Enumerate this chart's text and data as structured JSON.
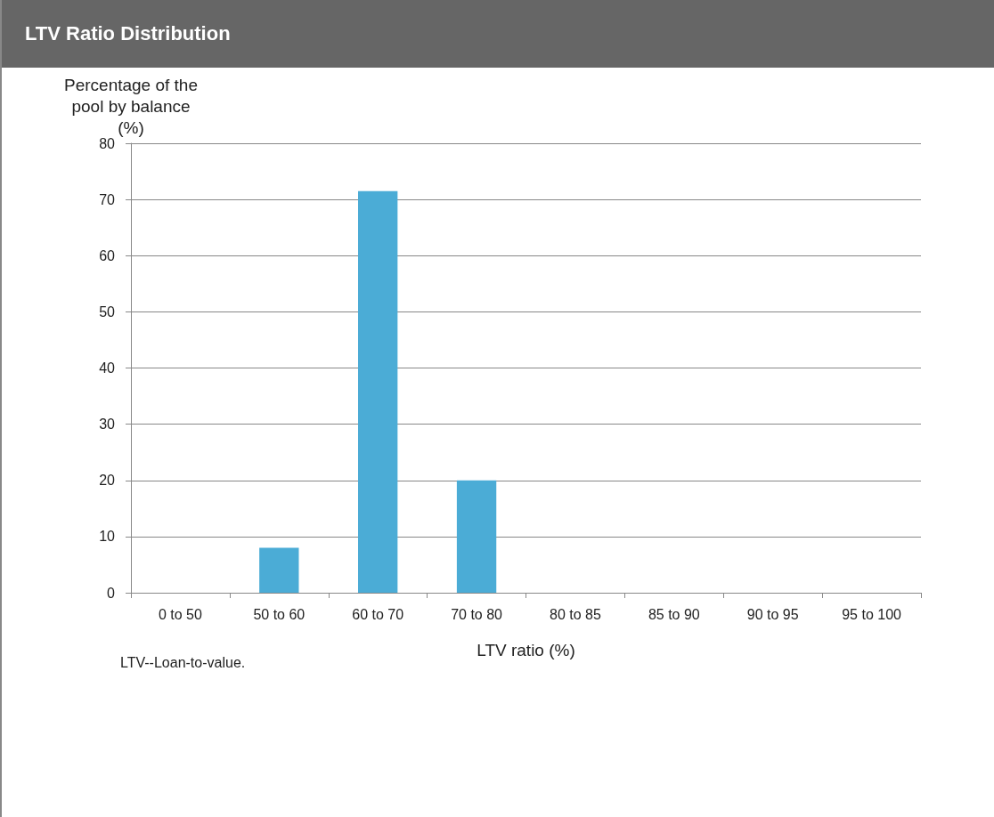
{
  "chart_data": {
    "type": "bar",
    "title": "LTV Ratio Distribution",
    "ylabel": "Percentage of the\npool by balance\n(%)",
    "xlabel": "LTV ratio (%)",
    "categories": [
      "0 to 50",
      "50 to 60",
      "60 to 70",
      "70 to 80",
      "80 to 85",
      "85 to 90",
      "90 to 95",
      "95 to 100"
    ],
    "values": [
      0,
      8,
      71.5,
      20,
      0,
      0,
      0,
      0
    ],
    "color": "#4bacd6",
    "ylim": [
      0,
      80
    ],
    "yticks": [
      0,
      10,
      20,
      30,
      40,
      50,
      60,
      70,
      80
    ],
    "grid": "y",
    "annotations": [
      "LTV--Loan-to-value."
    ]
  }
}
